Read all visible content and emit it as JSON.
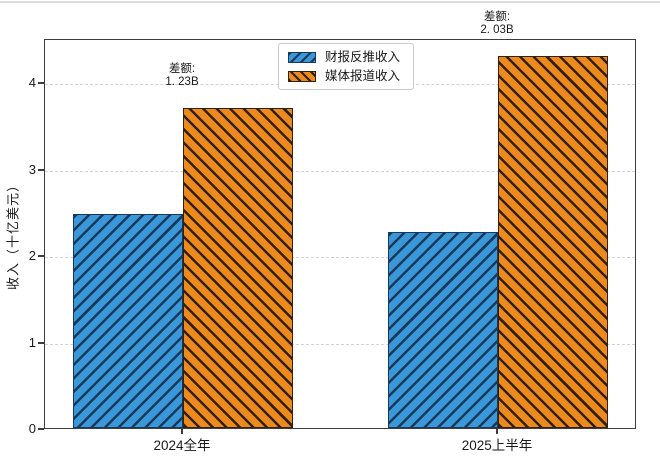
{
  "page": {
    "background": "#ffffff",
    "top_divider_color": "#dcdcdc"
  },
  "chart_data": {
    "type": "bar",
    "categories": [
      "2024全年",
      "2025上半年"
    ],
    "series": [
      {
        "name": "财报反推收入",
        "values": [
          2.47,
          2.27
        ],
        "color": "#3A98D8",
        "hatch": "/",
        "hatch_color": "#17395C"
      },
      {
        "name": "媒体报道收入",
        "values": [
          3.7,
          4.3
        ],
        "color": "#EC8A1D",
        "hatch": "\\",
        "hatch_color": "#33200C"
      }
    ],
    "annotations": [
      {
        "category_index": 0,
        "lines": [
          "差额:",
          "1. 23B"
        ],
        "value": 1.23
      },
      {
        "category_index": 1,
        "lines": [
          "差额:",
          "2. 03B"
        ],
        "value": 2.03
      }
    ],
    "ylabel": "收入（十亿美元）",
    "yticks": [
      "0",
      "1",
      "2",
      "3",
      "4"
    ],
    "ylim": [
      0,
      4.51
    ],
    "grid": {
      "axis": "y",
      "style": "dashed",
      "color": "#d2d2d2"
    },
    "legend": {
      "position": "upper-center-left",
      "border_color": "#cbcbcb"
    },
    "axis_color": "#3d3d3d"
  }
}
